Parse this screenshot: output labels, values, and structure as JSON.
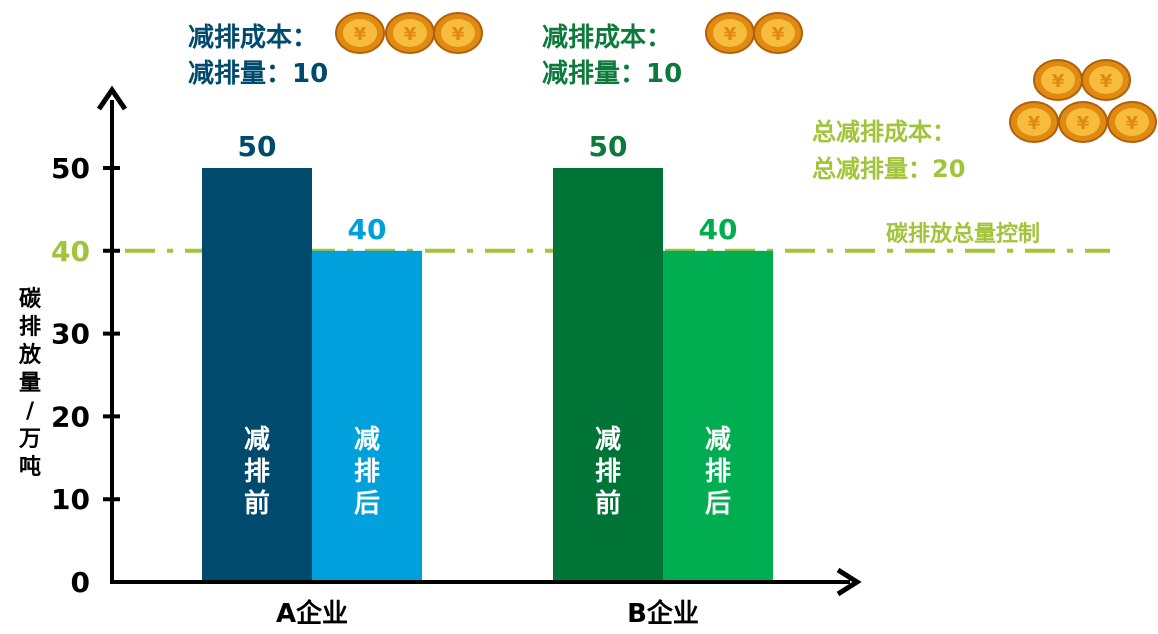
{
  "chart_data": {
    "type": "bar",
    "ylabel": "碳排放量/万吨",
    "ylim": [
      0,
      50
    ],
    "yticks": [
      "0",
      "10",
      "20",
      "30",
      "40",
      "50"
    ],
    "categories": [
      "A企业",
      "B企业"
    ],
    "bars": [
      {
        "category": "A企业",
        "label": "减排前",
        "value": 50,
        "value_label": "50",
        "color": "#004a6e",
        "value_color": "#004a6e"
      },
      {
        "category": "A企业",
        "label": "减排后",
        "value": 40,
        "value_label": "40",
        "color": "#00a0dc",
        "value_color": "#00a0dc"
      },
      {
        "category": "B企业",
        "label": "减排前",
        "value": 50,
        "value_label": "50",
        "color": "#007437",
        "value_color": "#0b7a3a"
      },
      {
        "category": "B企业",
        "label": "减排后",
        "value": 40,
        "value_label": "40",
        "color": "#00ae51",
        "value_color": "#00ae51"
      }
    ],
    "reference_line": {
      "value": 40,
      "label": "碳排放总量控制",
      "color": "#a2c43b",
      "style": "dash-dot"
    },
    "annotations": {
      "a": {
        "line1": "减排成本：",
        "line2": "减排量：10",
        "coins": 3,
        "color": "#004a6e"
      },
      "b": {
        "line1": "减排成本：",
        "line2": "减排量：10",
        "coins": 2,
        "color": "#0b7a3a"
      },
      "total": {
        "line1": "总减排成本：",
        "line2": "总减排量：20",
        "coins": 5,
        "color": "#a2c43b"
      }
    },
    "colors": {
      "axis": "#000000",
      "tick_40": "#a2c43b",
      "coin_outer": "#e08a10",
      "coin_inner": "#f7bc3d",
      "coin_edge": "#b2600a"
    },
    "coin_icon": "yuan-coin-icon"
  }
}
